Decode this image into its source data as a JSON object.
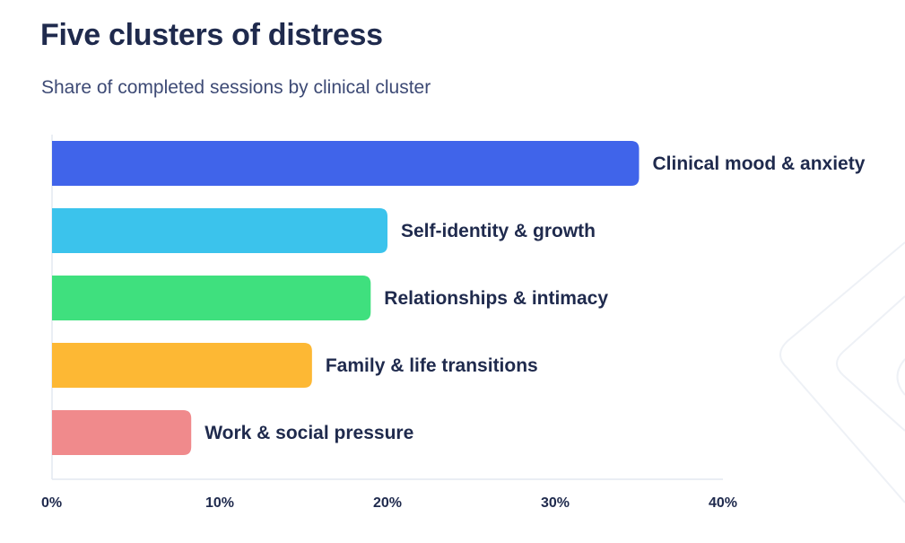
{
  "header": {
    "title": "Five clusters of distress",
    "subtitle": "Share of completed sessions by clinical cluster"
  },
  "chart_data": {
    "type": "bar",
    "orientation": "horizontal",
    "title": "Five clusters of distress",
    "subtitle": "Share of completed sessions by clinical cluster",
    "categories": [
      "Clinical mood & anxiety",
      "Self-identity & growth",
      "Relationships & intimacy",
      "Family & life transitions",
      "Work & social pressure"
    ],
    "values": [
      35,
      20,
      19,
      15.5,
      8.3
    ],
    "colors": [
      "#4064ea",
      "#3bc3ec",
      "#3fe07e",
      "#fdb834",
      "#f08a8c"
    ],
    "xlim": [
      0,
      40
    ],
    "xticks": [
      "0%",
      "10%",
      "20%",
      "30%",
      "40%"
    ],
    "xlabel": "",
    "ylabel": "",
    "grid": false,
    "legend": "none"
  }
}
